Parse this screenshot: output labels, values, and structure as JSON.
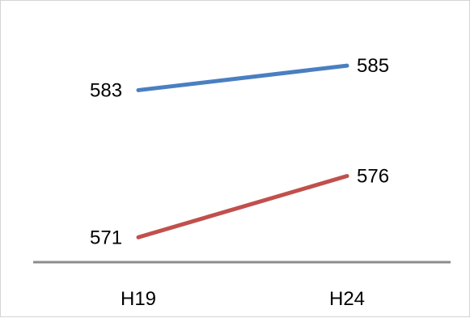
{
  "chart_data": {
    "type": "line",
    "categories": [
      "H19",
      "H24"
    ],
    "series": [
      {
        "color": "#4a7fc1",
        "values": [
          583,
          585
        ]
      },
      {
        "color": "#c0504d",
        "values": [
          571,
          576
        ]
      }
    ],
    "axis_color": "#8c8c8c",
    "title": "",
    "xlabel": "",
    "ylabel": "",
    "grid": false,
    "legend": "none"
  }
}
